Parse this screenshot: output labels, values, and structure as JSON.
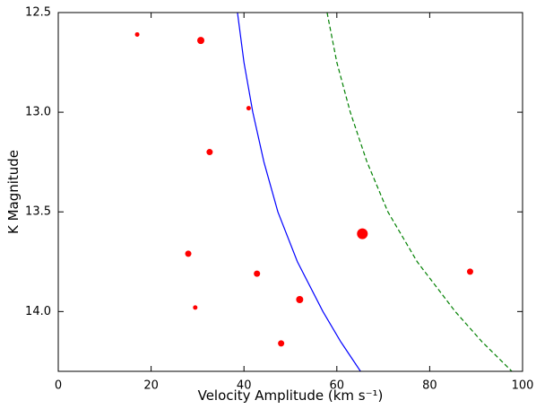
{
  "chart_data": {
    "type": "scatter",
    "x_label": "Velocity Amplitude (km s⁻¹)",
    "y_label": "K Magnitude",
    "xlim": [
      0,
      100
    ],
    "xticks": [
      0,
      20,
      40,
      60,
      80,
      100
    ],
    "ylim": [
      12.5,
      14.3
    ],
    "y_inverted": true,
    "yticks": [
      12.5,
      {
        "value": 13,
        "label": "13.0"
      },
      13.5,
      {
        "value": 14,
        "label": "14.0"
      }
    ],
    "points": {
      "color": "#ff0000",
      "x": [
        17,
        30.7,
        41,
        32.6,
        65.5,
        28,
        42.8,
        88.7,
        52,
        29.5,
        48
      ],
      "values": [
        12.61,
        12.64,
        12.98,
        13.2,
        13.61,
        13.71,
        13.81,
        13.8,
        13.94,
        13.98,
        14.16
      ],
      "sizes": [
        5,
        8,
        5,
        7,
        12,
        7,
        7,
        7,
        8,
        5,
        7
      ]
    },
    "curves": [
      {
        "color": "#0000ff",
        "dashed": false,
        "x": [
          38.6,
          40.0,
          41.9,
          44.3,
          47.3,
          51.5,
          57.0,
          60.8,
          65.1
        ],
        "values": [
          12.5,
          12.75,
          13.0,
          13.25,
          13.5,
          13.75,
          14.0,
          14.15,
          14.3
        ]
      },
      {
        "color": "#008000",
        "dashed": true,
        "x": [
          57.9,
          60.0,
          62.9,
          66.5,
          71.0,
          77.3,
          85.5,
          91.2,
          97.7
        ],
        "values": [
          12.5,
          12.75,
          13.0,
          13.25,
          13.5,
          13.75,
          14.0,
          14.15,
          14.3
        ]
      }
    ]
  }
}
